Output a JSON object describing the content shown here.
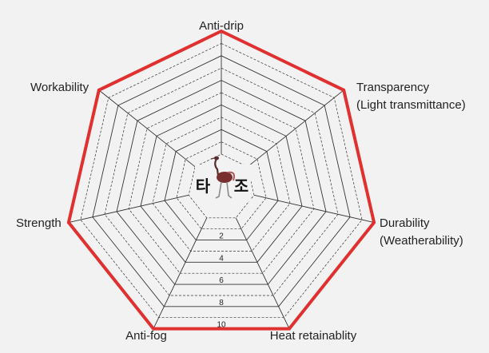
{
  "chart_data": {
    "type": "radar",
    "axes": [
      "Anti-drip",
      "Transparency (Light transmittance)",
      "Durability (Weatherability)",
      "Heat retainablity",
      "Anti-fog",
      "Strength",
      "Workability"
    ],
    "axis_label_lines": [
      [
        "Anti-drip"
      ],
      [
        "Transparency",
        "(Light transmittance)"
      ],
      [
        "Durability",
        "(Weatherability)"
      ],
      [
        "Heat retainablity"
      ],
      [
        "Anti-fog"
      ],
      [
        "Strength"
      ],
      [
        "Workability"
      ]
    ],
    "series": [
      {
        "values": [
          10,
          10,
          10,
          10,
          10,
          10,
          10
        ]
      }
    ],
    "rlim": [
      0,
      10
    ],
    "tick_labels": [
      "2",
      "4",
      "6",
      "8",
      "10"
    ],
    "tick_values": [
      2,
      4,
      6,
      8,
      10
    ],
    "series_color": "#e03030",
    "grid_color": "#333333"
  },
  "logo": {
    "char_left": "타",
    "char_right": "조",
    "icon": "ostrich-icon"
  }
}
